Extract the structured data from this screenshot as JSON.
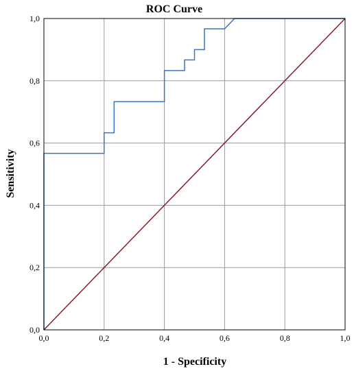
{
  "chart_data": {
    "type": "line",
    "title": "ROC Curve",
    "xlabel": "1 - Specificity",
    "ylabel": "Sensitivity",
    "xlim": [
      0,
      1
    ],
    "ylim": [
      0,
      1
    ],
    "xticks": [
      "0,0",
      "0,2",
      "0,4",
      "0,6",
      "0,8",
      "1,0"
    ],
    "yticks": [
      "0,0",
      "0,2",
      "0,4",
      "0,6",
      "0,8",
      "1,0"
    ],
    "grid": true,
    "series": [
      {
        "color": "#3a74c4",
        "x": [
          0,
          0,
          0.2,
          0.2,
          0.233,
          0.233,
          0.4,
          0.4,
          0.467,
          0.467,
          0.5,
          0.5,
          0.533,
          0.533,
          0.6,
          0.633,
          1.0
        ],
        "y": [
          0,
          0.567,
          0.567,
          0.633,
          0.633,
          0.733,
          0.733,
          0.833,
          0.833,
          0.867,
          0.867,
          0.9,
          0.9,
          0.967,
          0.967,
          1.0,
          1.0
        ]
      },
      {
        "color": "#8b1a2c",
        "x": [
          0,
          1
        ],
        "y": [
          0,
          1
        ]
      }
    ]
  }
}
